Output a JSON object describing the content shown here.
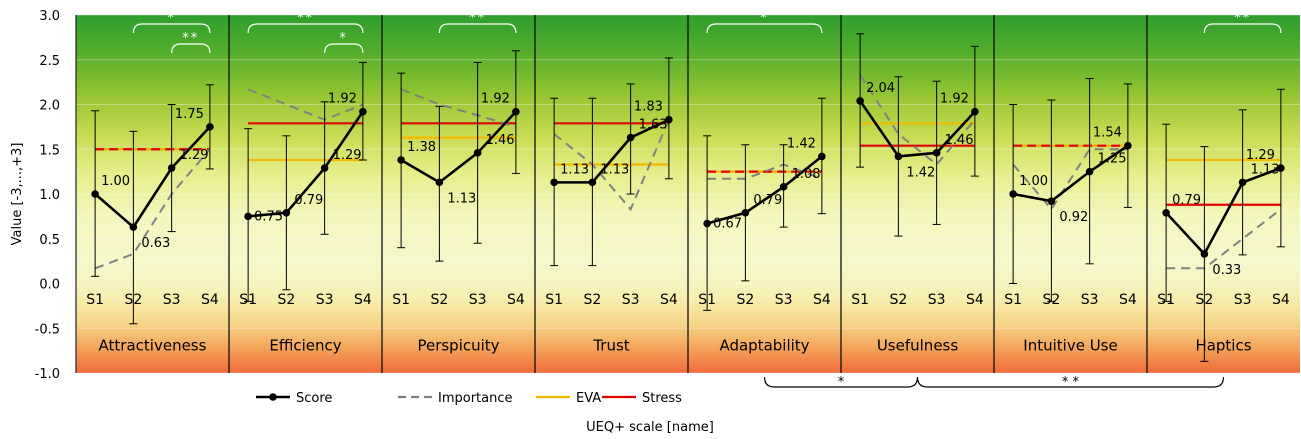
{
  "chart_data": {
    "type": "line",
    "ylabel": "Value [-3,...,+3]",
    "xlabel": "UEQ+ scale [name]",
    "ylim": [
      -1.0,
      3.0
    ],
    "yticks": [
      "3.0",
      "2.5",
      "2.0",
      "1.5",
      "1.0",
      "0.5",
      "0.0",
      "-0.5",
      "-1.0"
    ],
    "subcategories": [
      "S1",
      "S2",
      "S3",
      "S4"
    ],
    "legend": {
      "position": "bottom",
      "items": [
        {
          "name": "Score",
          "color": "#000000",
          "style": "solid-marker"
        },
        {
          "name": "Importance",
          "color": "#808080",
          "style": "dashed"
        },
        {
          "name": "EVA",
          "color": "#f5b800",
          "style": "solid"
        },
        {
          "name": "Stress",
          "color": "#e00000",
          "style": "solid"
        }
      ]
    },
    "colors": {
      "score": "#000000",
      "importance": "#808080",
      "eva": "#f5b800",
      "stress": "#e00000"
    },
    "scales": [
      {
        "name": "Attractiveness",
        "score": [
          1.0,
          0.63,
          1.29,
          1.75
        ],
        "score_labels": [
          "1.00",
          "0.63",
          "1.29",
          "1.75"
        ],
        "err_low": [
          0.08,
          -0.45,
          0.58,
          1.28
        ],
        "err_high": [
          1.93,
          1.7,
          2.0,
          2.22
        ],
        "importance": [
          0.17,
          0.33,
          1.0,
          1.5
        ],
        "eva": 1.5,
        "stress": 1.5,
        "brackets": [
          {
            "from": 1,
            "to": 3,
            "label": "*"
          },
          {
            "from": 2,
            "to": 3,
            "label": "**"
          }
        ]
      },
      {
        "name": "Efficiency",
        "score": [
          0.75,
          0.79,
          1.29,
          1.92
        ],
        "score_labels": [
          "0.75",
          "0.79",
          "1.29",
          "1.92"
        ],
        "err_low": [
          -0.2,
          -0.07,
          0.55,
          1.38
        ],
        "err_high": [
          1.73,
          1.65,
          2.03,
          2.47
        ],
        "importance": [
          2.17,
          2.0,
          1.83,
          2.0
        ],
        "eva": 1.38,
        "stress": 1.79,
        "brackets": [
          {
            "from": 0,
            "to": 3,
            "label": "**"
          },
          {
            "from": 2,
            "to": 3,
            "label": "*"
          }
        ]
      },
      {
        "name": "Perspicuity",
        "score": [
          1.38,
          1.13,
          1.46,
          1.92
        ],
        "score_labels": [
          "1.38",
          "1.13",
          "1.46",
          "1.92"
        ],
        "err_low": [
          0.4,
          0.25,
          0.45,
          1.23
        ],
        "err_high": [
          2.35,
          1.98,
          2.47,
          2.6
        ],
        "importance": [
          2.17,
          2.0,
          1.88,
          1.75
        ],
        "eva": 1.63,
        "stress": 1.79,
        "brackets": [
          {
            "from": 1,
            "to": 3,
            "label": "**"
          }
        ]
      },
      {
        "name": "Trust",
        "score": [
          1.13,
          1.13,
          1.63,
          1.83
        ],
        "score_labels": [
          "1.13",
          "1.13",
          "1.63",
          "1.83"
        ],
        "err_low": [
          0.2,
          0.2,
          1.0,
          1.17
        ],
        "err_high": [
          2.07,
          2.07,
          2.23,
          2.52
        ],
        "importance": [
          1.67,
          1.33,
          0.83,
          1.83
        ],
        "eva": 1.33,
        "stress": 1.79,
        "brackets": []
      },
      {
        "name": "Adaptability",
        "score": [
          0.67,
          0.79,
          1.08,
          1.42
        ],
        "score_labels": [
          "0.67",
          "0.79",
          "1.08",
          "1.42"
        ],
        "err_low": [
          -0.3,
          0.03,
          0.63,
          0.78
        ],
        "err_high": [
          1.65,
          1.55,
          1.55,
          2.07
        ],
        "importance": [
          1.17,
          1.17,
          1.33,
          1.17
        ],
        "eva": 1.25,
        "stress": 1.25,
        "brackets": [
          {
            "from": 0,
            "to": 3,
            "label": "*"
          }
        ]
      },
      {
        "name": "Usefulness",
        "score": [
          2.04,
          1.42,
          1.46,
          1.92
        ],
        "score_labels": [
          "2.04",
          "1.42",
          "1.46",
          "1.92"
        ],
        "err_low": [
          1.3,
          0.53,
          0.66,
          1.2
        ],
        "err_high": [
          2.79,
          2.31,
          2.26,
          2.65
        ],
        "importance": [
          2.33,
          1.67,
          1.33,
          1.83
        ],
        "eva": 1.79,
        "stress": 1.54,
        "brackets": []
      },
      {
        "name": "Intuitive Use",
        "score": [
          1.0,
          0.92,
          1.25,
          1.54
        ],
        "score_labels": [
          "1.00",
          "0.92",
          "1.25",
          "1.54"
        ],
        "err_low": [
          0.0,
          -0.2,
          0.22,
          0.85
        ],
        "err_high": [
          2.0,
          2.05,
          2.29,
          2.23
        ],
        "importance": [
          1.33,
          0.83,
          1.5,
          1.5
        ],
        "eva": 1.54,
        "stress": 1.54,
        "brackets": []
      },
      {
        "name": "Haptics",
        "score": [
          0.79,
          0.33,
          1.13,
          1.29
        ],
        "score_labels": [
          "0.79",
          "0.33",
          "1.13",
          "1.29"
        ],
        "err_low": [
          -0.2,
          -0.87,
          0.32,
          0.41
        ],
        "err_high": [
          1.78,
          1.53,
          1.94,
          2.17
        ],
        "importance": [
          0.17,
          0.17,
          0.5,
          0.83
        ],
        "eva": 1.38,
        "stress": 0.88,
        "brackets": [
          {
            "from": 1,
            "to": 3,
            "label": "**"
          }
        ]
      }
    ],
    "bottom_brackets": [
      {
        "from_scale": 4,
        "to_scale": 5,
        "label": "*"
      },
      {
        "from_scale": 5,
        "to_scale": 7,
        "label": "* *"
      }
    ]
  }
}
